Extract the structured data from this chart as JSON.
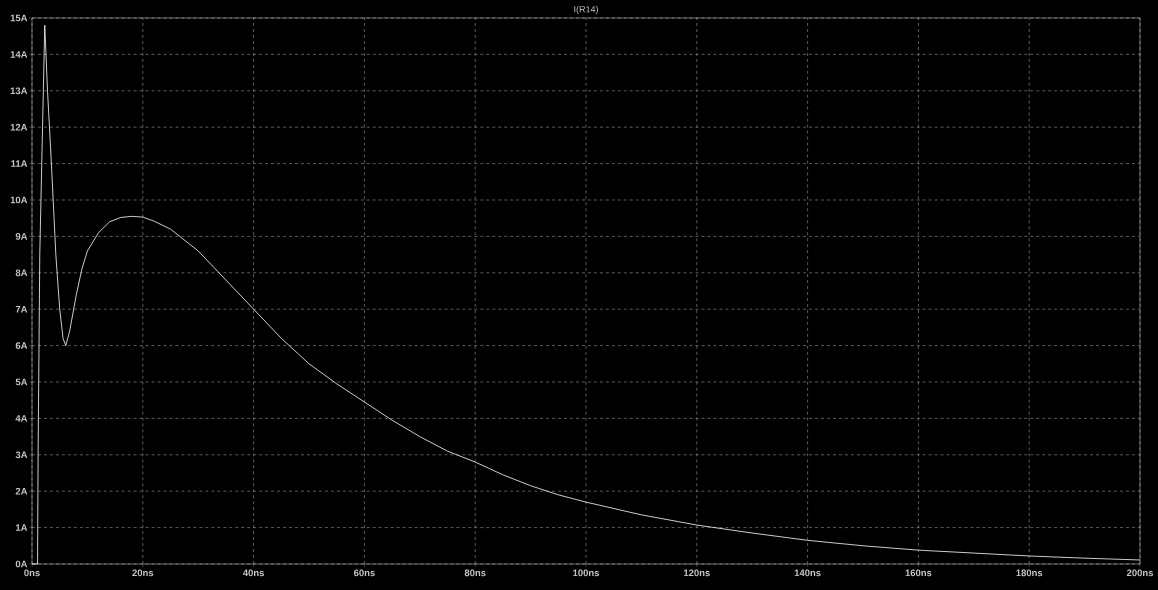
{
  "chart_data": {
    "type": "line",
    "title": "I(R14)",
    "color": "#ffffff",
    "grid": true,
    "x": [
      0,
      1.0,
      1.1,
      1.4,
      2.3,
      2.8,
      3.5,
      4.3,
      5.0,
      5.6,
      6.1,
      6.8,
      8,
      9,
      10,
      12,
      14,
      16,
      18,
      20,
      22,
      25,
      30,
      35,
      40,
      45,
      50,
      55,
      60,
      65,
      70,
      75,
      80,
      85,
      90,
      95,
      100,
      110,
      120,
      130,
      140,
      150,
      160,
      170,
      180,
      190,
      200
    ],
    "values": [
      0,
      0,
      3,
      8.5,
      14.8,
      13,
      11,
      8.5,
      7,
      6.2,
      6.0,
      6.4,
      7.4,
      8.1,
      8.6,
      9.1,
      9.4,
      9.52,
      9.55,
      9.53,
      9.42,
      9.2,
      8.6,
      7.8,
      7.0,
      6.2,
      5.5,
      4.95,
      4.45,
      3.95,
      3.5,
      3.1,
      2.8,
      2.45,
      2.15,
      1.9,
      1.7,
      1.35,
      1.07,
      0.85,
      0.65,
      0.5,
      0.38,
      0.3,
      0.22,
      0.16,
      0.11
    ],
    "xlim": [
      0,
      200
    ],
    "ylim": [
      0,
      15
    ],
    "xticks": [
      {
        "value": 0,
        "label": "0ns"
      },
      {
        "value": 20,
        "label": "20ns"
      },
      {
        "value": 40,
        "label": "40ns"
      },
      {
        "value": 60,
        "label": "60ns"
      },
      {
        "value": 80,
        "label": "80ns"
      },
      {
        "value": 100,
        "label": "100ns"
      },
      {
        "value": 120,
        "label": "120ns"
      },
      {
        "value": 140,
        "label": "140ns"
      },
      {
        "value": 160,
        "label": "160ns"
      },
      {
        "value": 180,
        "label": "180ns"
      },
      {
        "value": 200,
        "label": "200ns"
      }
    ],
    "yticks": [
      {
        "value": 0,
        "label": "0A"
      },
      {
        "value": 1,
        "label": "1A"
      },
      {
        "value": 2,
        "label": "2A"
      },
      {
        "value": 3,
        "label": "3A"
      },
      {
        "value": 4,
        "label": "4A"
      },
      {
        "value": 5,
        "label": "5A"
      },
      {
        "value": 6,
        "label": "6A"
      },
      {
        "value": 7,
        "label": "7A"
      },
      {
        "value": 8,
        "label": "8A"
      },
      {
        "value": 9,
        "label": "9A"
      },
      {
        "value": 10,
        "label": "10A"
      },
      {
        "value": 11,
        "label": "11A"
      },
      {
        "value": 12,
        "label": "12A"
      },
      {
        "value": 13,
        "label": "13A"
      },
      {
        "value": 14,
        "label": "14A"
      },
      {
        "value": 15,
        "label": "15A"
      }
    ]
  }
}
